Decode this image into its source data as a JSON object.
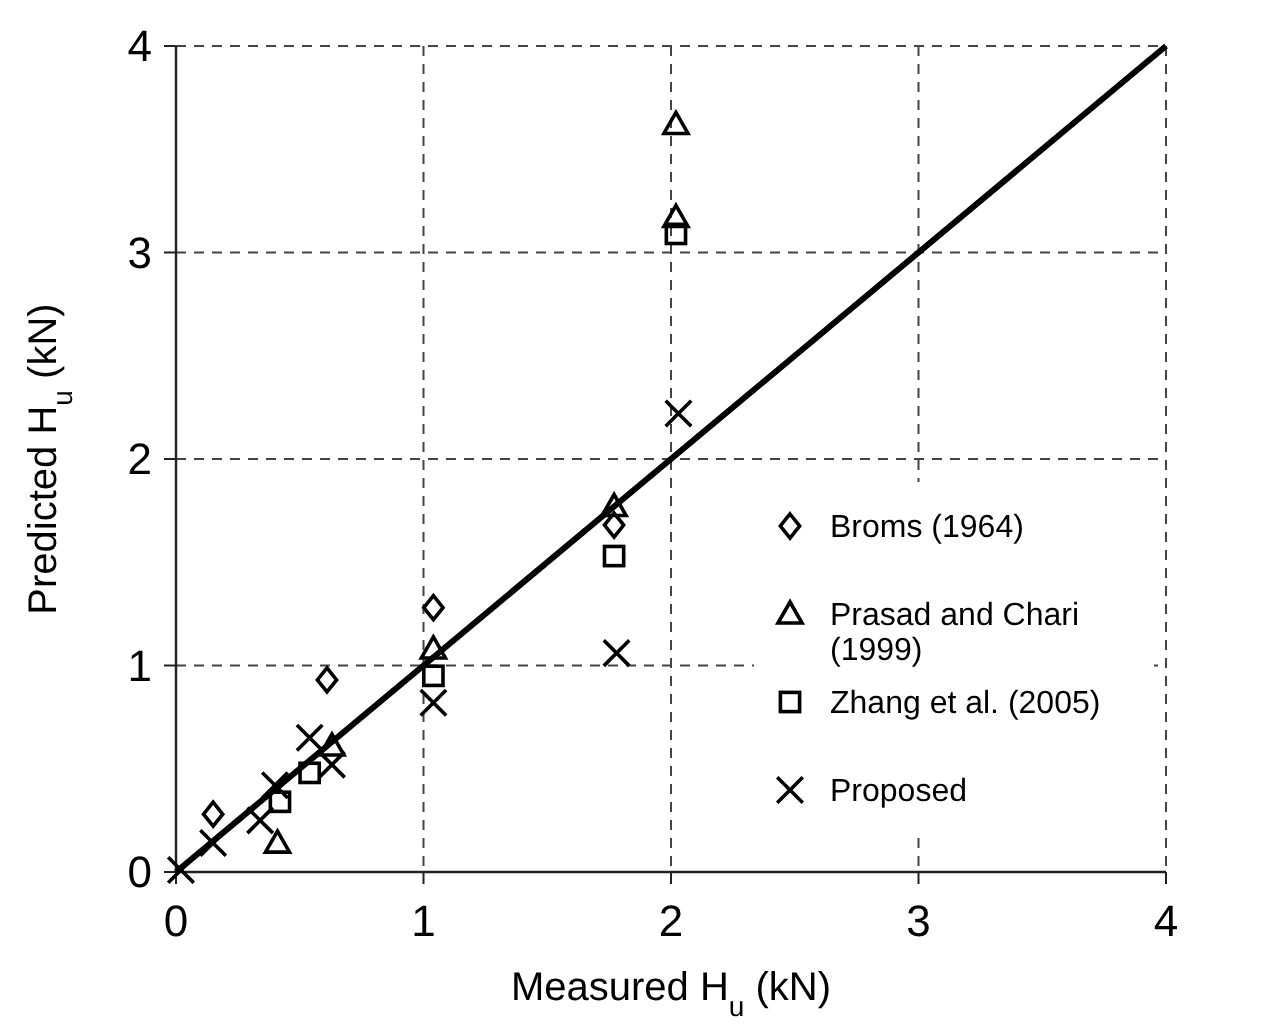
{
  "chart_data": {
    "type": "scatter",
    "xlabel": "Measured H$_{u}$ (kN)",
    "ylabel": "Predicted H$_{u}$ (kN)",
    "xlim": [
      0,
      4
    ],
    "ylim": [
      0,
      4
    ],
    "xticks": [
      0,
      1,
      2,
      3,
      4
    ],
    "yticks": [
      0,
      1,
      2,
      3,
      4
    ],
    "grid": true,
    "legend": "bottom right",
    "series": [
      {
        "name": "Broms (1964)",
        "color": "#000000",
        "marker": "diamond",
        "x": [
          0.15,
          0.61,
          1.04,
          1.77
        ],
        "values": [
          0.28,
          0.93,
          1.28,
          1.68
        ]
      },
      {
        "name": "Prasad and Chari (1999)",
        "color": "#000000",
        "marker": "triangle",
        "x": [
          0.41,
          0.63,
          1.04,
          1.77,
          2.02,
          2.02
        ],
        "values": [
          0.14,
          0.61,
          1.08,
          1.77,
          3.17,
          3.62
        ]
      },
      {
        "name": "Zhang et al. (2005)",
        "color": "#000000",
        "marker": "square",
        "x": [
          0.42,
          0.54,
          1.04,
          1.77,
          2.02
        ],
        "values": [
          0.34,
          0.48,
          0.95,
          1.53,
          3.09
        ]
      },
      {
        "name": "Proposed",
        "color": "#000000",
        "marker": "cross",
        "x": [
          0.02,
          0.15,
          0.34,
          0.4,
          0.54,
          0.63,
          1.04,
          1.78,
          2.03
        ],
        "values": [
          0.01,
          0.14,
          0.25,
          0.42,
          0.65,
          0.52,
          0.82,
          1.06,
          2.22
        ]
      },
      {
        "type": "line",
        "color": "#000000",
        "marker": "none",
        "line_style": "solid",
        "x": [
          0,
          4
        ],
        "values": [
          0,
          4
        ]
      }
    ]
  }
}
